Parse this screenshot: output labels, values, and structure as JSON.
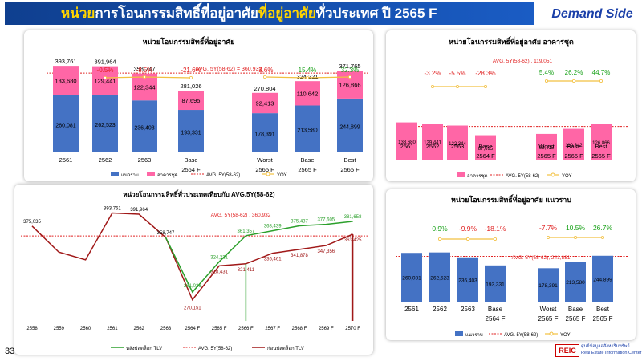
{
  "header": {
    "title_a": "หน่วย",
    "title_b": "การโอนกรรมสิทธิ์ที่อยู่อาศัย",
    "title_c": "ที่อยู่อาศัย",
    "title_d": "ทั่วประเทศ ปี 2565 F",
    "badge": "Demand Side"
  },
  "footer": {
    "page_number": "33",
    "logo_mark": "REIC",
    "logo_line1": "ศูนย์ข้อมูลอสังหาริมทรัพย์",
    "logo_line2": "Real Estate Information Center"
  },
  "colors": {
    "condo": "#ff66a6",
    "house": "#4472c4",
    "avg": "#e02020",
    "yoy": "#f2c040",
    "after": "#2ca02c",
    "before": "#a01818",
    "growth_pos": "#16a016",
    "growth_neg": "#e02020"
  },
  "chart_data": [
    {
      "type": "bar",
      "title": "หน่วยโอนกรรมสิทธิ์ที่อยู่อาศัย",
      "categories": [
        "2561",
        "2562",
        "2563",
        "Base 2564 F",
        "Worst 2565 F",
        "Base 2565 F",
        "Best 2565 F"
      ],
      "category_lines": [
        [
          "2561"
        ],
        [
          "2562"
        ],
        [
          "2563"
        ],
        [
          "Base",
          "2564 F"
        ],
        [
          "Worst",
          "2565 F"
        ],
        [
          "Base",
          "2565 F"
        ],
        [
          "Best",
          "2565 F"
        ]
      ],
      "stacked": true,
      "series": [
        {
          "name": "แนวราบ",
          "values": [
            260081,
            262523,
            236403,
            193331,
            178391,
            213580,
            244899
          ]
        },
        {
          "name": "อาคารชุด",
          "values": [
            133680,
            129441,
            122344,
            87695,
            92413,
            110642,
            126866
          ]
        }
      ],
      "totals": [
        393761,
        391964,
        358747,
        281026,
        270804,
        324221,
        371765
      ],
      "growth": [
        "",
        "-0.5%",
        "-8.5%",
        "-21.6%",
        "-3.6%",
        "15.4%",
        "32.3%"
      ],
      "avg_label": "AVG. 5Y(58-62) = 360,932",
      "avg_value": 360932,
      "legend": [
        "แนวราบ",
        "อาคารชุด",
        "AVG. 5Y(58-62)",
        "YOY"
      ]
    },
    {
      "type": "bar",
      "title": "หน่วยโอนกรรมสิทธิ์ที่อยู่อาศัย อาคารชุด",
      "categories": [
        "2561",
        "2562",
        "2563",
        "Base 2564 F",
        "Worst 2565 F",
        "Base 2565 F",
        "Best 2565 F"
      ],
      "category_lines": [
        [
          "2561"
        ],
        [
          "2562"
        ],
        [
          "2563"
        ],
        [
          "Base",
          "2564 F"
        ],
        [
          "Worst",
          "2565 F"
        ],
        [
          "Base",
          "2565 F"
        ],
        [
          "Best",
          "2565 F"
        ]
      ],
      "series": [
        {
          "name": "อาคารชุด",
          "values": [
            133680,
            129441,
            122344,
            87695,
            92413,
            110642,
            126866
          ]
        }
      ],
      "growth": [
        "",
        "-3.2%",
        "-5.5%",
        "-28.3%",
        "5.4%",
        "26.2%",
        "44.7%"
      ],
      "avg_label": "AVG. 5Y(58-62) ,  119,051",
      "avg_value": 119051,
      "legend": [
        "อาคารชุด",
        "AVG. 5Y(58-62)",
        "YOY"
      ]
    },
    {
      "type": "line",
      "title": "หน่วยโอนกรรมสิทธิ์ทั่วประเทศเทียบกับ AVG.5Y(58-62)",
      "x": [
        "2558",
        "2559",
        "2560",
        "2561",
        "2562",
        "2563",
        "2564 F",
        "2565 F",
        "2566 F",
        "2567 F",
        "2568 F",
        "2569 F",
        "2570 F"
      ],
      "series": [
        {
          "name": "หลังปลดล็อก TLV",
          "values": [
            375035,
            null,
            null,
            393761,
            391964,
            358747,
            281026,
            324221,
            361357,
            368439,
            375437,
            377605,
            381658
          ]
        },
        {
          "name": "ก่อนปลดล็อก TLV",
          "values": [
            375035,
            null,
            null,
            393761,
            391964,
            358747,
            270151,
            318431,
            321411,
            336461,
            341878,
            347356,
            363425
          ]
        }
      ],
      "point_labels_after": [
        "375,035",
        "",
        "",
        "393,761",
        "391,964",
        "358,747",
        "281,026",
        "324,221",
        "361,357",
        "368,439",
        "375,437",
        "377,605",
        "381,658"
      ],
      "point_labels_before": [
        "",
        "",
        "",
        "",
        "",
        "",
        "270,151",
        "318,431",
        "321,411",
        "336,461",
        "341,878",
        "347,356",
        "363,425"
      ],
      "avg_label": "AVG. 5Y(58-62) ,  360,932",
      "avg_value": 360932,
      "legend": [
        "หลังปลดล็อก TLV",
        "AVG. 5Y(58-62)",
        "ก่อนปลดล็อก TLV"
      ]
    },
    {
      "type": "bar",
      "title": "หน่วยโอนกรรมสิทธิ์ที่อยู่อาศัย แนวราบ",
      "categories": [
        "2561",
        "2562",
        "2563",
        "Base 2564 F",
        "Worst 2565 F",
        "Base 2565 F",
        "Best 2565 F"
      ],
      "category_lines": [
        [
          "2561"
        ],
        [
          "2562"
        ],
        [
          "2563"
        ],
        [
          "Base",
          "2564 F"
        ],
        [
          "Worst",
          "2565 F"
        ],
        [
          "Base",
          "2565 F"
        ],
        [
          "Best",
          "2565 F"
        ]
      ],
      "series": [
        {
          "name": "แนวราบ",
          "values": [
            260081,
            262523,
            236403,
            193331,
            178391,
            213580,
            244899
          ]
        }
      ],
      "growth": [
        "",
        "0.9%",
        "-9.9%",
        "-18.1%",
        "-7.7%",
        "10.5%",
        "26.7%"
      ],
      "avg_label": "AVG. 5Y(58-62),  241,881",
      "avg_value": 241881,
      "legend": [
        "แนวราบ",
        "AVG. 5Y(58-62)",
        "YOY"
      ]
    }
  ]
}
